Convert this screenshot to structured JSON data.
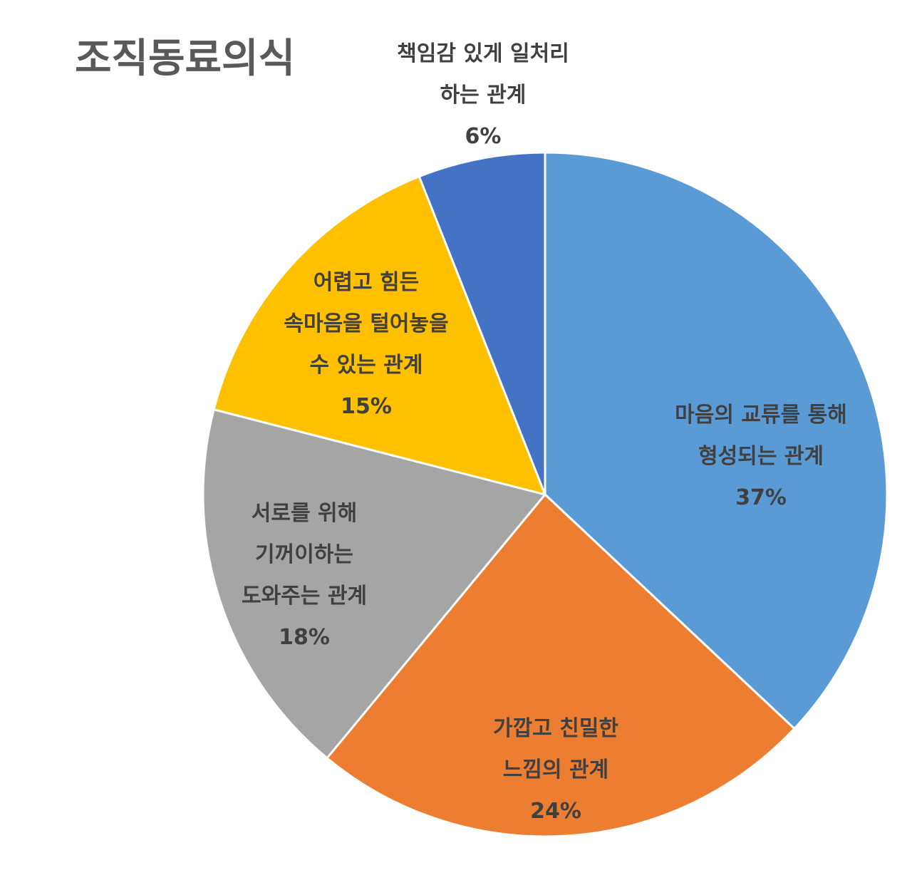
{
  "chart_data": {
    "type": "pie",
    "title": "조직동료의식",
    "legend": "none",
    "slices": [
      {
        "name": "마음의 교류를 통해 형성되는 관계",
        "label_lines": [
          "마음의 교류를 통해",
          "형성되는 관계"
        ],
        "value": 37,
        "value_label": "37%",
        "color": "#5B9BD5"
      },
      {
        "name": "가깝고 친밀한 느낌의 관계",
        "label_lines": [
          "가깝고 친밀한",
          "느낌의 관계"
        ],
        "value": 24,
        "value_label": "24%",
        "color": "#ED7D31"
      },
      {
        "name": "서로를 위해 기꺼이하는 도와주는 관계",
        "label_lines": [
          "서로를 위해",
          "기꺼이하는",
          "도와주는 관계"
        ],
        "value": 18,
        "value_label": "18%",
        "color": "#A5A5A5"
      },
      {
        "name": "어렵고 힘든 속마음을 털어놓을 수 있는 관계",
        "label_lines": [
          "어렵고 힘든",
          "속마음을 털어놓을",
          "수 있는 관계"
        ],
        "value": 15,
        "value_label": "15%",
        "color": "#FFC000"
      },
      {
        "name": "책임감 있게 일처리 하는 관계",
        "label_lines": [
          "책임감 있게 일처리",
          "하는 관계"
        ],
        "value": 6,
        "value_label": "6%",
        "color": "#4472C4"
      }
    ]
  }
}
